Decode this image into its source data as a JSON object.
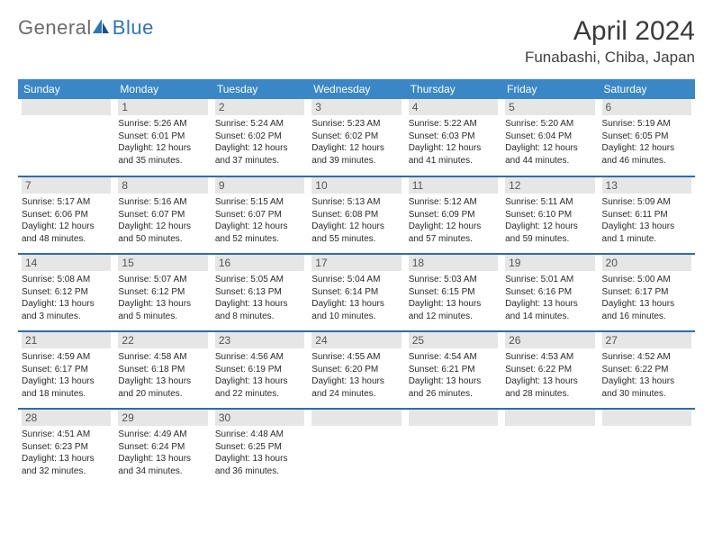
{
  "logo": {
    "textA": "General",
    "textB": "Blue"
  },
  "header": {
    "month_title": "April 2024",
    "location": "Funabashi, Chiba, Japan"
  },
  "colors": {
    "header_bg": "#3a87c8",
    "header_text": "#ffffff",
    "row_border": "#2e6ea6",
    "daynum_bg": "#e6e6e6",
    "logo_gray": "#6b6b6b",
    "logo_blue": "#2e75b6"
  },
  "weekdays": [
    "Sunday",
    "Monday",
    "Tuesday",
    "Wednesday",
    "Thursday",
    "Friday",
    "Saturday"
  ],
  "weeks": [
    [
      {
        "day": "",
        "lines": []
      },
      {
        "day": "1",
        "lines": [
          "Sunrise: 5:26 AM",
          "Sunset: 6:01 PM",
          "Daylight: 12 hours",
          "and 35 minutes."
        ]
      },
      {
        "day": "2",
        "lines": [
          "Sunrise: 5:24 AM",
          "Sunset: 6:02 PM",
          "Daylight: 12 hours",
          "and 37 minutes."
        ]
      },
      {
        "day": "3",
        "lines": [
          "Sunrise: 5:23 AM",
          "Sunset: 6:02 PM",
          "Daylight: 12 hours",
          "and 39 minutes."
        ]
      },
      {
        "day": "4",
        "lines": [
          "Sunrise: 5:22 AM",
          "Sunset: 6:03 PM",
          "Daylight: 12 hours",
          "and 41 minutes."
        ]
      },
      {
        "day": "5",
        "lines": [
          "Sunrise: 5:20 AM",
          "Sunset: 6:04 PM",
          "Daylight: 12 hours",
          "and 44 minutes."
        ]
      },
      {
        "day": "6",
        "lines": [
          "Sunrise: 5:19 AM",
          "Sunset: 6:05 PM",
          "Daylight: 12 hours",
          "and 46 minutes."
        ]
      }
    ],
    [
      {
        "day": "7",
        "lines": [
          "Sunrise: 5:17 AM",
          "Sunset: 6:06 PM",
          "Daylight: 12 hours",
          "and 48 minutes."
        ]
      },
      {
        "day": "8",
        "lines": [
          "Sunrise: 5:16 AM",
          "Sunset: 6:07 PM",
          "Daylight: 12 hours",
          "and 50 minutes."
        ]
      },
      {
        "day": "9",
        "lines": [
          "Sunrise: 5:15 AM",
          "Sunset: 6:07 PM",
          "Daylight: 12 hours",
          "and 52 minutes."
        ]
      },
      {
        "day": "10",
        "lines": [
          "Sunrise: 5:13 AM",
          "Sunset: 6:08 PM",
          "Daylight: 12 hours",
          "and 55 minutes."
        ]
      },
      {
        "day": "11",
        "lines": [
          "Sunrise: 5:12 AM",
          "Sunset: 6:09 PM",
          "Daylight: 12 hours",
          "and 57 minutes."
        ]
      },
      {
        "day": "12",
        "lines": [
          "Sunrise: 5:11 AM",
          "Sunset: 6:10 PM",
          "Daylight: 12 hours",
          "and 59 minutes."
        ]
      },
      {
        "day": "13",
        "lines": [
          "Sunrise: 5:09 AM",
          "Sunset: 6:11 PM",
          "Daylight: 13 hours",
          "and 1 minute."
        ]
      }
    ],
    [
      {
        "day": "14",
        "lines": [
          "Sunrise: 5:08 AM",
          "Sunset: 6:12 PM",
          "Daylight: 13 hours",
          "and 3 minutes."
        ]
      },
      {
        "day": "15",
        "lines": [
          "Sunrise: 5:07 AM",
          "Sunset: 6:12 PM",
          "Daylight: 13 hours",
          "and 5 minutes."
        ]
      },
      {
        "day": "16",
        "lines": [
          "Sunrise: 5:05 AM",
          "Sunset: 6:13 PM",
          "Daylight: 13 hours",
          "and 8 minutes."
        ]
      },
      {
        "day": "17",
        "lines": [
          "Sunrise: 5:04 AM",
          "Sunset: 6:14 PM",
          "Daylight: 13 hours",
          "and 10 minutes."
        ]
      },
      {
        "day": "18",
        "lines": [
          "Sunrise: 5:03 AM",
          "Sunset: 6:15 PM",
          "Daylight: 13 hours",
          "and 12 minutes."
        ]
      },
      {
        "day": "19",
        "lines": [
          "Sunrise: 5:01 AM",
          "Sunset: 6:16 PM",
          "Daylight: 13 hours",
          "and 14 minutes."
        ]
      },
      {
        "day": "20",
        "lines": [
          "Sunrise: 5:00 AM",
          "Sunset: 6:17 PM",
          "Daylight: 13 hours",
          "and 16 minutes."
        ]
      }
    ],
    [
      {
        "day": "21",
        "lines": [
          "Sunrise: 4:59 AM",
          "Sunset: 6:17 PM",
          "Daylight: 13 hours",
          "and 18 minutes."
        ]
      },
      {
        "day": "22",
        "lines": [
          "Sunrise: 4:58 AM",
          "Sunset: 6:18 PM",
          "Daylight: 13 hours",
          "and 20 minutes."
        ]
      },
      {
        "day": "23",
        "lines": [
          "Sunrise: 4:56 AM",
          "Sunset: 6:19 PM",
          "Daylight: 13 hours",
          "and 22 minutes."
        ]
      },
      {
        "day": "24",
        "lines": [
          "Sunrise: 4:55 AM",
          "Sunset: 6:20 PM",
          "Daylight: 13 hours",
          "and 24 minutes."
        ]
      },
      {
        "day": "25",
        "lines": [
          "Sunrise: 4:54 AM",
          "Sunset: 6:21 PM",
          "Daylight: 13 hours",
          "and 26 minutes."
        ]
      },
      {
        "day": "26",
        "lines": [
          "Sunrise: 4:53 AM",
          "Sunset: 6:22 PM",
          "Daylight: 13 hours",
          "and 28 minutes."
        ]
      },
      {
        "day": "27",
        "lines": [
          "Sunrise: 4:52 AM",
          "Sunset: 6:22 PM",
          "Daylight: 13 hours",
          "and 30 minutes."
        ]
      }
    ],
    [
      {
        "day": "28",
        "lines": [
          "Sunrise: 4:51 AM",
          "Sunset: 6:23 PM",
          "Daylight: 13 hours",
          "and 32 minutes."
        ]
      },
      {
        "day": "29",
        "lines": [
          "Sunrise: 4:49 AM",
          "Sunset: 6:24 PM",
          "Daylight: 13 hours",
          "and 34 minutes."
        ]
      },
      {
        "day": "30",
        "lines": [
          "Sunrise: 4:48 AM",
          "Sunset: 6:25 PM",
          "Daylight: 13 hours",
          "and 36 minutes."
        ]
      },
      {
        "day": "",
        "lines": []
      },
      {
        "day": "",
        "lines": []
      },
      {
        "day": "",
        "lines": []
      },
      {
        "day": "",
        "lines": []
      }
    ]
  ]
}
